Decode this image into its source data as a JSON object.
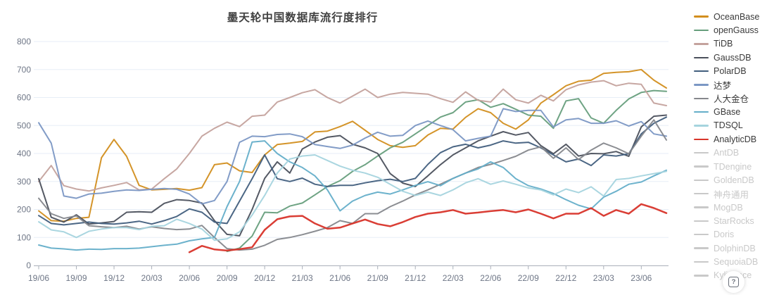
{
  "help_button": {
    "glyph": "?"
  },
  "chart_data": {
    "type": "line",
    "title": "墨天轮中国数据库流行度排行",
    "xlabel": "",
    "ylabel": "",
    "ylim": [
      0,
      800
    ],
    "y_ticks": [
      0,
      100,
      200,
      300,
      400,
      500,
      600,
      700,
      800
    ],
    "grid": true,
    "legend_position": "right",
    "x_tick_every": 3,
    "x": [
      "19/06",
      "19/07",
      "19/08",
      "19/09",
      "19/10",
      "19/11",
      "19/12",
      "20/01",
      "20/02",
      "20/03",
      "20/04",
      "20/05",
      "20/06",
      "20/07",
      "20/08",
      "20/09",
      "20/10",
      "20/11",
      "20/12",
      "21/01",
      "21/02",
      "21/03",
      "21/04",
      "21/05",
      "21/06",
      "21/07",
      "21/08",
      "21/09",
      "21/10",
      "21/11",
      "21/12",
      "22/01",
      "22/02",
      "22/03",
      "22/04",
      "22/05",
      "22/06",
      "22/07",
      "22/08",
      "22/09",
      "22/10",
      "22/11",
      "22/12",
      "23/01",
      "23/02",
      "23/03",
      "23/04",
      "23/05",
      "23/06",
      "23/07",
      "23/08"
    ],
    "series": [
      {
        "name": "OceanBase",
        "color": "#d28e1d",
        "active": true,
        "values": [
          195,
          160,
          158,
          168,
          172,
          385,
          450,
          390,
          286,
          270,
          272,
          275,
          269,
          278,
          360,
          366,
          338,
          332,
          395,
          432,
          437,
          443,
          477,
          480,
          496,
          515,
          483,
          450,
          428,
          422,
          428,
          466,
          490,
          487,
          529,
          560,
          546,
          508,
          487,
          520,
          580,
          610,
          642,
          658,
          662,
          686,
          690,
          692,
          700,
          662,
          634
        ]
      },
      {
        "name": "openGauss",
        "color": "#669e7c",
        "active": true,
        "values": [
          null,
          null,
          null,
          null,
          null,
          null,
          null,
          null,
          null,
          null,
          null,
          null,
          null,
          null,
          null,
          50,
          62,
          105,
          190,
          188,
          212,
          223,
          252,
          282,
          303,
          336,
          360,
          391,
          420,
          440,
          470,
          500,
          530,
          546,
          584,
          592,
          565,
          578,
          558,
          537,
          533,
          490,
          588,
          596,
          527,
          508,
          554,
          595,
          618,
          625,
          622
        ]
      },
      {
        "name": "TiDB",
        "color": "#c4a29d",
        "active": true,
        "values": [
          300,
          357,
          285,
          273,
          266,
          277,
          286,
          296,
          270,
          273,
          310,
          345,
          400,
          462,
          490,
          512,
          496,
          533,
          537,
          584,
          600,
          617,
          628,
          600,
          580,
          605,
          630,
          600,
          612,
          618,
          615,
          612,
          596,
          583,
          620,
          590,
          584,
          630,
          592,
          580,
          608,
          588,
          628,
          645,
          655,
          660,
          642,
          651,
          647,
          580,
          571
        ]
      },
      {
        "name": "GaussDB",
        "color": "#4b505c",
        "active": true,
        "values": [
          310,
          172,
          155,
          181,
          148,
          152,
          157,
          190,
          192,
          190,
          222,
          235,
          232,
          223,
          160,
          111,
          106,
          200,
          311,
          370,
          330,
          416,
          441,
          458,
          464,
          433,
          420,
          400,
          328,
          294,
          282,
          320,
          360,
          395,
          420,
          445,
          462,
          478,
          466,
          475,
          428,
          399,
          433,
          391,
          400,
          399,
          407,
          390,
          495,
          533,
          537
        ]
      },
      {
        "name": "PolarDB",
        "color": "#415e7d",
        "active": true,
        "values": [
          178,
          150,
          145,
          150,
          155,
          150,
          148,
          152,
          158,
          148,
          160,
          175,
          202,
          190,
          155,
          150,
          230,
          310,
          395,
          310,
          300,
          312,
          290,
          282,
          286,
          286,
          295,
          303,
          308,
          300,
          311,
          361,
          403,
          424,
          433,
          420,
          430,
          445,
          437,
          440,
          420,
          395,
          370,
          380,
          357,
          395,
          391,
          399,
          470,
          508,
          530
        ]
      },
      {
        "name": "达梦",
        "color": "#7b97c4",
        "active": true,
        "values": [
          510,
          437,
          248,
          240,
          255,
          258,
          265,
          270,
          268,
          272,
          275,
          272,
          255,
          220,
          232,
          300,
          440,
          462,
          460,
          468,
          470,
          460,
          432,
          425,
          418,
          430,
          455,
          476,
          462,
          465,
          500,
          516,
          500,
          485,
          445,
          454,
          462,
          560,
          550,
          554,
          554,
          495,
          520,
          525,
          508,
          508,
          517,
          498,
          514,
          470,
          462
        ]
      },
      {
        "name": "人大金仓",
        "color": "#85878c",
        "active": true,
        "values": [
          240,
          185,
          168,
          177,
          142,
          138,
          135,
          140,
          130,
          138,
          132,
          128,
          130,
          143,
          100,
          60,
          55,
          58,
          72,
          93,
          100,
          110,
          122,
          135,
          160,
          150,
          185,
          185,
          210,
          230,
          252,
          270,
          290,
          311,
          330,
          350,
          361,
          375,
          390,
          412,
          424,
          383,
          420,
          378,
          412,
          437,
          420,
          399,
          462,
          520,
          448
        ]
      },
      {
        "name": "GBase",
        "color": "#64aec9",
        "active": true,
        "values": [
          73,
          62,
          59,
          55,
          58,
          57,
          60,
          60,
          62,
          67,
          72,
          76,
          88,
          95,
          100,
          210,
          300,
          441,
          445,
          400,
          370,
          350,
          320,
          270,
          195,
          230,
          250,
          262,
          255,
          270,
          286,
          299,
          285,
          311,
          330,
          345,
          370,
          350,
          310,
          285,
          273,
          257,
          235,
          215,
          202,
          244,
          265,
          290,
          298,
          320,
          340
        ]
      },
      {
        "name": "TDSQL",
        "color": "#a5d4de",
        "active": true,
        "values": [
          156,
          127,
          120,
          100,
          122,
          130,
          135,
          135,
          128,
          140,
          142,
          165,
          150,
          130,
          90,
          95,
          120,
          180,
          250,
          330,
          380,
          391,
          395,
          375,
          355,
          340,
          330,
          315,
          290,
          265,
          250,
          262,
          250,
          270,
          295,
          310,
          290,
          302,
          290,
          277,
          270,
          252,
          273,
          260,
          281,
          248,
          307,
          311,
          320,
          328,
          336
        ]
      },
      {
        "name": "AnalyticDB",
        "color": "#d8342a",
        "width": 2.5,
        "active": true,
        "values": [
          null,
          null,
          null,
          null,
          null,
          null,
          null,
          null,
          null,
          null,
          null,
          null,
          47,
          70,
          57,
          53,
          58,
          65,
          127,
          165,
          175,
          177,
          150,
          131,
          135,
          150,
          164,
          148,
          140,
          155,
          173,
          185,
          190,
          198,
          185,
          189,
          194,
          198,
          190,
          200,
          185,
          168,
          185,
          185,
          205,
          177,
          198,
          185,
          219,
          205,
          187
        ]
      },
      {
        "name": "AntDB",
        "color": "#c9c9c9",
        "active": false,
        "values": []
      },
      {
        "name": "TDengine",
        "color": "#c9c9c9",
        "active": false,
        "values": []
      },
      {
        "name": "GoldenDB",
        "color": "#c9c9c9",
        "active": false,
        "values": []
      },
      {
        "name": "神舟通用",
        "color": "#c9c9c9",
        "active": false,
        "values": []
      },
      {
        "name": "MogDB",
        "color": "#c9c9c9",
        "active": false,
        "values": []
      },
      {
        "name": "StarRocks",
        "color": "#c9c9c9",
        "active": false,
        "values": []
      },
      {
        "name": "Doris",
        "color": "#c9c9c9",
        "active": false,
        "values": []
      },
      {
        "name": "DolphinDB",
        "color": "#c9c9c9",
        "active": false,
        "values": []
      },
      {
        "name": "SequoiaDB",
        "color": "#c9c9c9",
        "active": false,
        "values": []
      },
      {
        "name": "Kyligence",
        "color": "#c9c9c9",
        "active": false,
        "values": []
      }
    ],
    "style": {
      "grid_color": "#e7eef7",
      "axis_color": "#aab0ba",
      "tick_label_color": "#6e7686",
      "title_color": "#404040"
    }
  }
}
